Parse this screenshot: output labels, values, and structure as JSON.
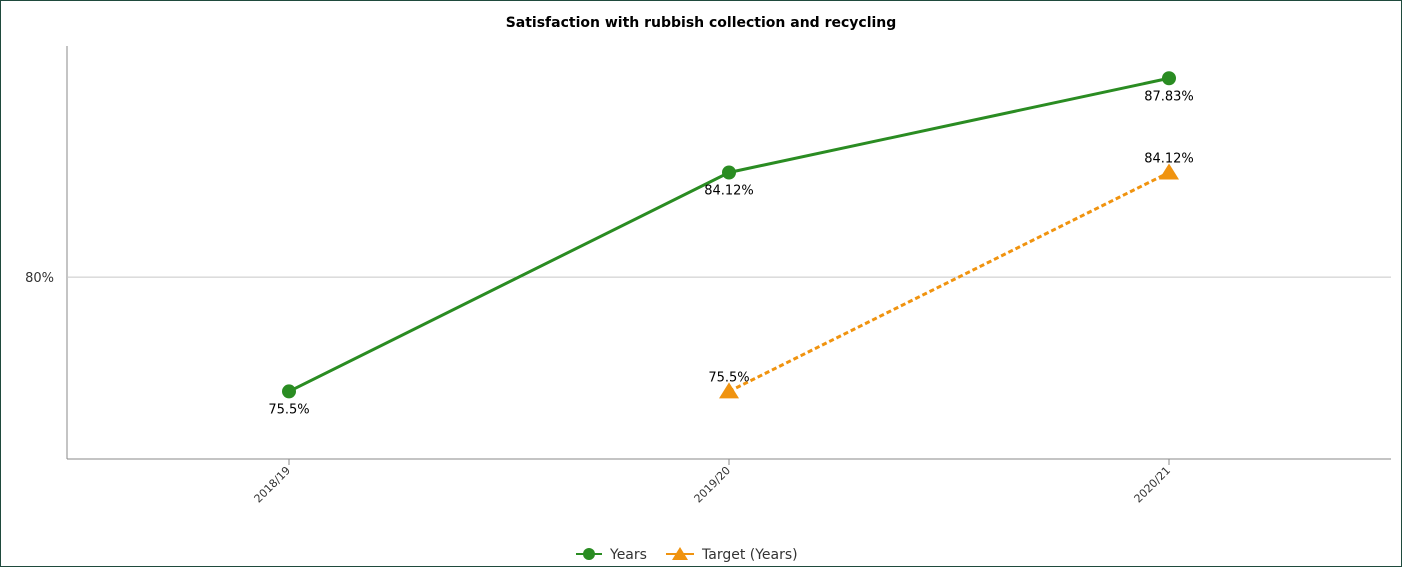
{
  "chart_data": {
    "type": "line",
    "title": "Satisfaction with rubbish collection and recycling",
    "categories": [
      "2018/19",
      "2019/20",
      "2020/21"
    ],
    "yticks": [
      "80%"
    ],
    "ylim": [
      72.84,
      89.1
    ],
    "grid": true,
    "legend_position": "bottom-center",
    "series": [
      {
        "name": "Years",
        "values": [
          75.5,
          84.12,
          87.83
        ],
        "labels": [
          "75.5%",
          "84.12%",
          "87.83%"
        ],
        "color": "#2a8c22",
        "marker": "circle",
        "line_style": "solid"
      },
      {
        "name": "Target (Years)",
        "values": [
          null,
          75.5,
          84.12
        ],
        "labels": [
          null,
          "75.5%",
          "84.12%"
        ],
        "color": "#f0930f",
        "marker": "triangle",
        "line_style": "dashed"
      }
    ]
  }
}
